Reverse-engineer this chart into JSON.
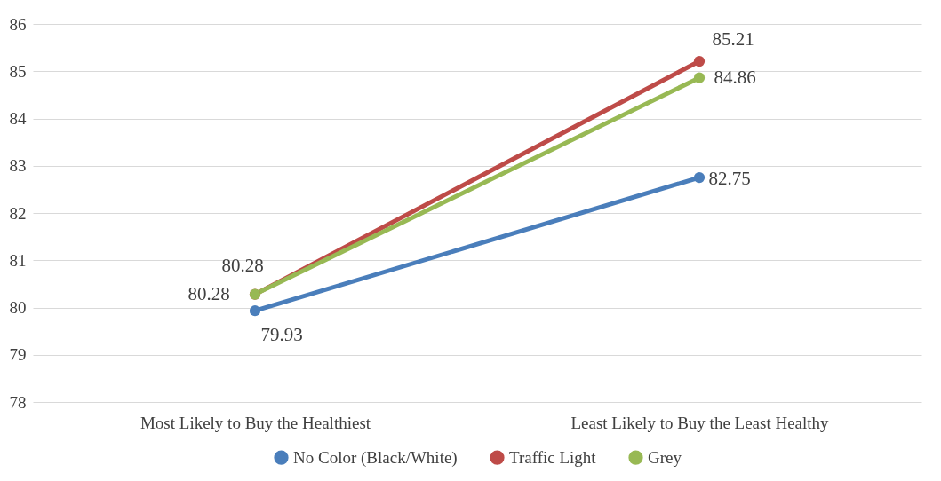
{
  "chart_data": {
    "type": "line",
    "categories": [
      "Most Likely to Buy the Healthiest",
      "Least Likely to Buy the Least Healthy"
    ],
    "series": [
      {
        "name": "No Color (Black/White)",
        "color": "#4a7ebb",
        "values": [
          79.93,
          82.75
        ]
      },
      {
        "name": "Traffic Light",
        "color": "#be4b48",
        "values": [
          80.28,
          85.21
        ]
      },
      {
        "name": "Grey",
        "color": "#98b954",
        "values": [
          80.28,
          84.86
        ]
      }
    ],
    "ylim": [
      78,
      86
    ],
    "yticks": [
      78,
      79,
      80,
      81,
      82,
      83,
      84,
      85,
      86
    ],
    "grid": "y",
    "legend": "bottom",
    "marker": "circle",
    "line_style": "solid",
    "data_labels": true
  }
}
